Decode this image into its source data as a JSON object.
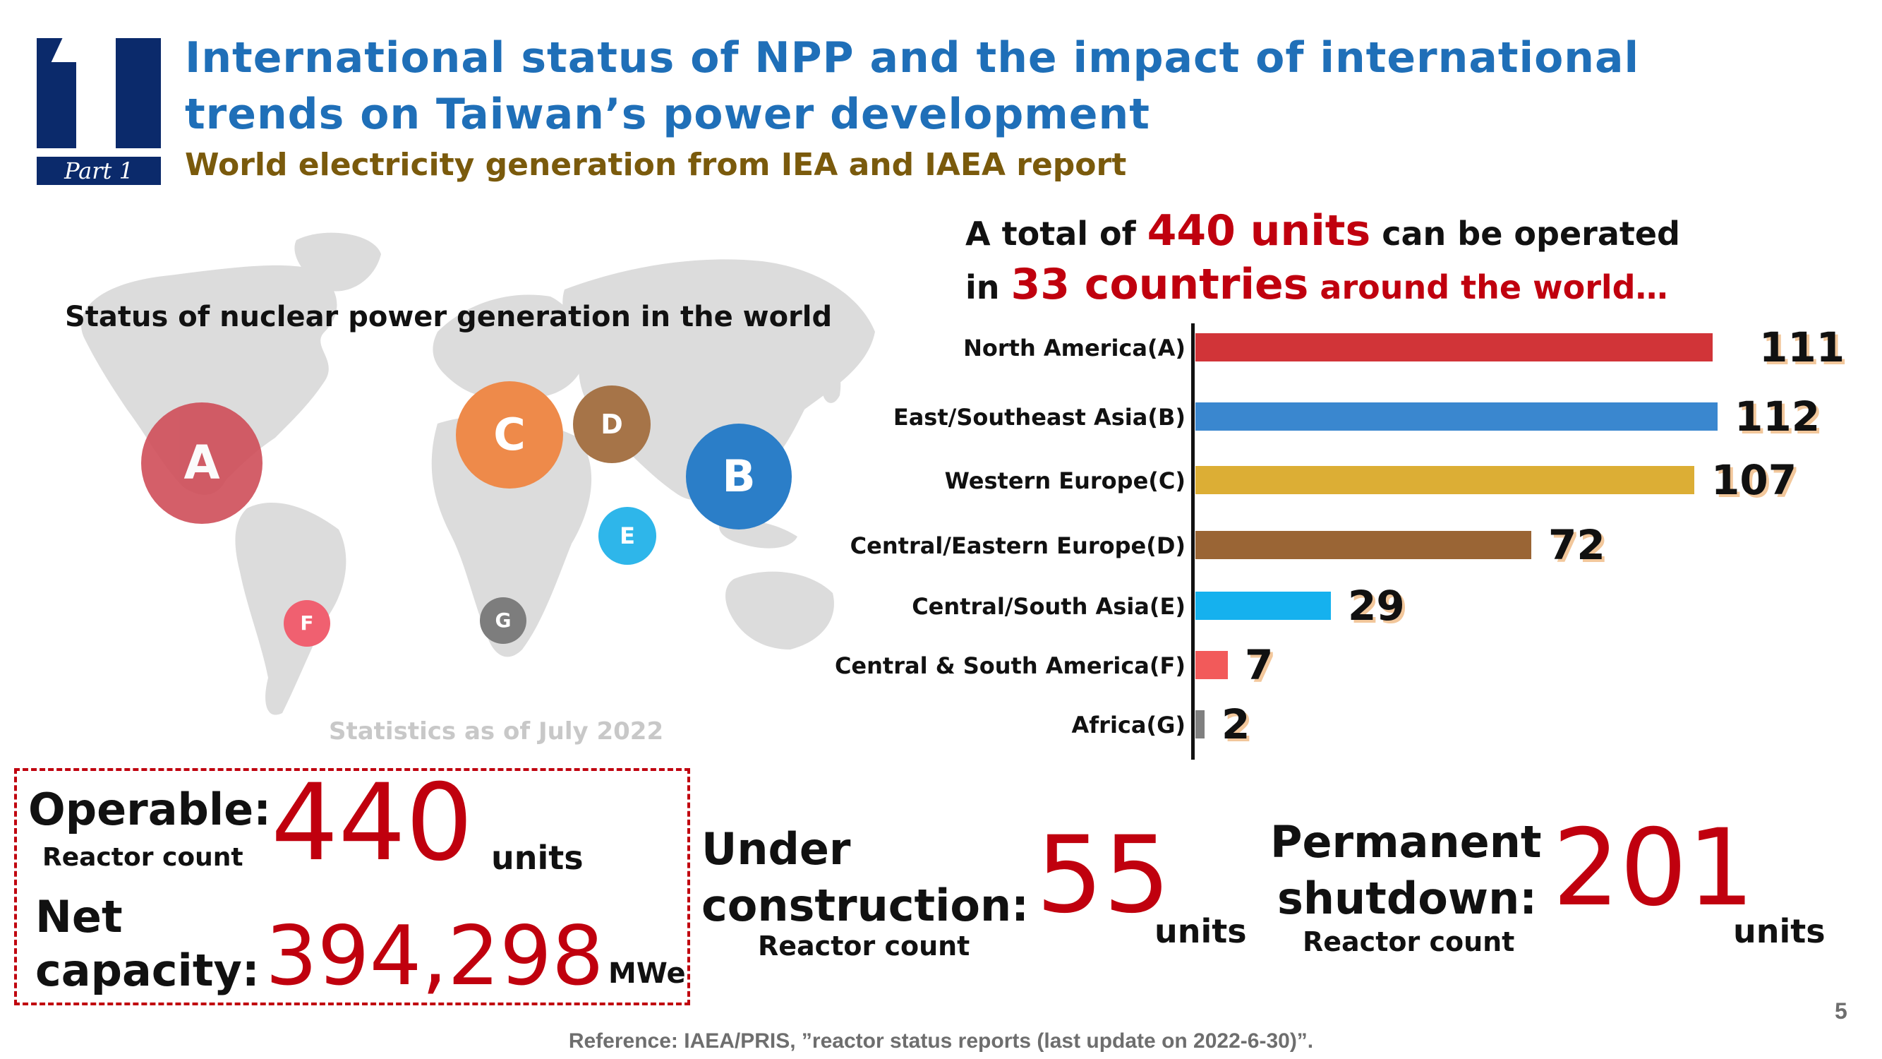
{
  "header": {
    "part_number": "1",
    "part_label": "Part 1",
    "title_line1": "International status of NPP and the impact of international",
    "title_line2": "trends on Taiwan’s power development",
    "subtitle": "World electricity generation from IEA and IAEA report"
  },
  "map": {
    "title": "Status of nuclear power generation in the world",
    "note": "Statistics as of July 2022",
    "regions": [
      {
        "letter": "A",
        "color": "#cf4e59"
      },
      {
        "letter": "B",
        "color": "#2b7ec8"
      },
      {
        "letter": "C",
        "color": "#ee8a4a"
      },
      {
        "letter": "D",
        "color": "#a67448"
      },
      {
        "letter": "E",
        "color": "#2eb6ea"
      },
      {
        "letter": "F",
        "color": "#f06070"
      },
      {
        "letter": "G",
        "color": "#7d7d7d"
      }
    ]
  },
  "headline": {
    "line1_pre": "A total of",
    "line1_highlight": "440 units",
    "line1_post": "can be operated",
    "line2_pre": "in",
    "line2_highlight": "33 countries",
    "line2_post": "around the world…"
  },
  "chart_data": {
    "type": "bar",
    "orientation": "horizontal",
    "categories": [
      "North America(A)",
      "East/Southeast Asia(B)",
      "Western Europe(C)",
      "Central/Eastern Europe(D)",
      "Central/South Asia(E)",
      "Central & South America(F)",
      "Africa(G)"
    ],
    "values": [
      111,
      112,
      107,
      72,
      29,
      7,
      2
    ],
    "labels": [
      "111",
      "112",
      "107",
      "72",
      "29",
      "7",
      "2"
    ],
    "colors": [
      "#d13438",
      "#3a87cf",
      "#dcae35",
      "#9a6535",
      "#15b1ee",
      "#f25a5a",
      "#808080"
    ],
    "title": "",
    "xlim": [
      0,
      112
    ]
  },
  "stats": {
    "operable_label": "Operable:",
    "operable_sub": "Reactor count",
    "operable_value": "440",
    "operable_unit": "units",
    "net_label_1": "Net",
    "net_label_2": "capacity:",
    "net_value": "394,298",
    "net_unit": "MWe",
    "construction_label_1": "Under",
    "construction_label_2": "construction:",
    "construction_sub": "Reactor count",
    "construction_value": "55",
    "construction_unit": "units",
    "shutdown_label_1": "Permanent",
    "shutdown_label_2": "shutdown:",
    "shutdown_sub": "Reactor count",
    "shutdown_value": "201",
    "shutdown_unit": "units"
  },
  "footer": {
    "reference": "Reference: IAEA/PRIS, ”reactor status reports (last update on 2022-6-30)”.",
    "page_number": "5"
  }
}
